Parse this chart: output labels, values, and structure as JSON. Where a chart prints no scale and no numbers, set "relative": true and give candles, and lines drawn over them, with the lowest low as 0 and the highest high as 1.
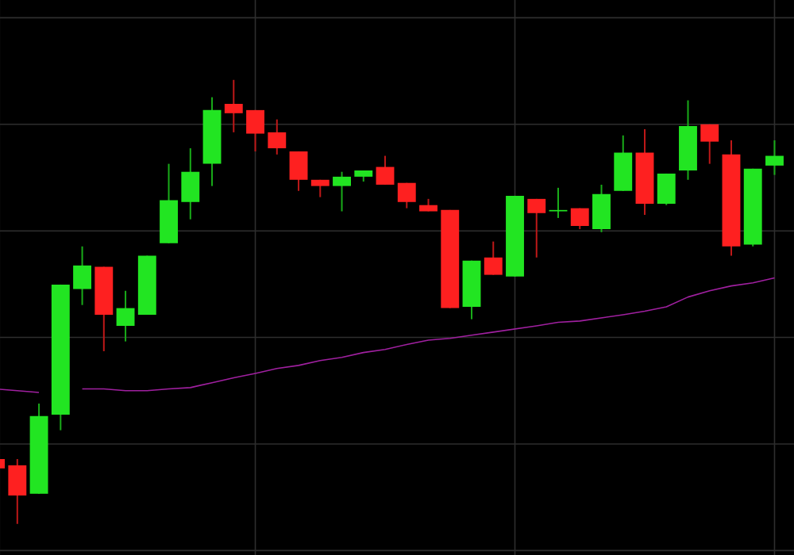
{
  "chart_data": {
    "type": "candlestick",
    "relative": true,
    "grid": true,
    "categories": [
      null,
      null,
      null,
      null,
      null,
      null,
      null,
      null,
      null,
      null,
      null,
      null,
      null,
      null,
      null,
      null,
      null,
      null,
      null,
      null,
      null,
      null,
      null,
      null,
      null,
      null,
      null,
      null,
      null,
      null,
      null,
      null,
      null,
      null,
      null,
      null,
      null
    ],
    "ohlc": [
      [
        0.146,
        0.15,
        0.121,
        0.125
      ],
      [
        0.132,
        0.146,
        0.0,
        0.064
      ],
      [
        0.068,
        0.271,
        0.068,
        0.243
      ],
      [
        0.246,
        0.539,
        0.211,
        0.539
      ],
      [
        0.529,
        0.625,
        0.493,
        0.582
      ],
      [
        0.579,
        0.579,
        0.389,
        0.471
      ],
      [
        0.446,
        0.525,
        0.411,
        0.486
      ],
      [
        0.471,
        0.604,
        0.471,
        0.604
      ],
      [
        0.632,
        0.811,
        0.632,
        0.729
      ],
      [
        0.725,
        0.846,
        0.686,
        0.793
      ],
      [
        0.811,
        0.961,
        0.761,
        0.932
      ],
      [
        0.946,
        1.0,
        0.882,
        0.925
      ],
      [
        0.932,
        0.932,
        0.839,
        0.879
      ],
      [
        0.882,
        0.911,
        0.832,
        0.846
      ],
      [
        0.839,
        0.839,
        0.75,
        0.775
      ],
      [
        0.775,
        0.775,
        0.736,
        0.761
      ],
      [
        0.761,
        0.793,
        0.704,
        0.782
      ],
      [
        0.782,
        0.796,
        0.771,
        0.796
      ],
      [
        0.804,
        0.829,
        0.764,
        0.764
      ],
      [
        0.768,
        0.768,
        0.711,
        0.725
      ],
      [
        0.718,
        0.732,
        0.704,
        0.704
      ],
      [
        0.707,
        0.707,
        0.486,
        0.486
      ],
      [
        0.489,
        0.593,
        0.461,
        0.593
      ],
      [
        0.6,
        0.636,
        0.561,
        0.561
      ],
      [
        0.557,
        0.739,
        0.557,
        0.739
      ],
      [
        0.732,
        0.732,
        0.6,
        0.7
      ],
      [
        0.704,
        0.757,
        0.689,
        0.707
      ],
      [
        0.711,
        0.711,
        0.664,
        0.671
      ],
      [
        0.664,
        0.764,
        0.657,
        0.743
      ],
      [
        0.75,
        0.875,
        0.75,
        0.836
      ],
      [
        0.836,
        0.889,
        0.696,
        0.721
      ],
      [
        0.721,
        0.789,
        0.718,
        0.789
      ],
      [
        0.796,
        0.954,
        0.775,
        0.896
      ],
      [
        0.9,
        0.9,
        0.811,
        0.861
      ],
      [
        0.832,
        0.864,
        0.604,
        0.625
      ],
      [
        0.629,
        0.8,
        0.625,
        0.8
      ],
      [
        0.807,
        0.864,
        0.786,
        0.829
      ]
    ],
    "colors": [
      "#fe2020",
      "#fe2020",
      "#22e522",
      "#22e522",
      "#22e522",
      "#fe2020",
      "#22e522",
      "#22e522",
      "#22e522",
      "#22e522",
      "#22e522",
      "#fe2020",
      "#fe2020",
      "#fe2020",
      "#fe2020",
      "#fe2020",
      "#22e522",
      "#22e522",
      "#fe2020",
      "#fe2020",
      "#fe2020",
      "#fe2020",
      "#22e522",
      "#fe2020",
      "#22e522",
      "#fe2020",
      "#22e522",
      "#fe2020",
      "#22e522",
      "#22e522",
      "#fe2020",
      "#22e522",
      "#22e522",
      "#fe2020",
      "#fe2020",
      "#22e522",
      "#22e522"
    ],
    "series": [
      {
        "type": "line",
        "color": "#a020a0",
        "values": [
          0.304,
          0.3,
          0.296,
          null,
          0.304,
          0.304,
          0.3,
          0.3,
          0.304,
          0.307,
          0.318,
          0.329,
          0.339,
          0.35,
          0.357,
          0.368,
          0.375,
          0.386,
          0.393,
          0.404,
          0.414,
          0.418,
          0.425,
          0.432,
          0.439,
          0.446,
          0.454,
          0.457,
          0.464,
          0.471,
          0.479,
          0.489,
          0.511,
          0.525,
          0.536,
          0.543,
          0.554
        ]
      }
    ]
  }
}
